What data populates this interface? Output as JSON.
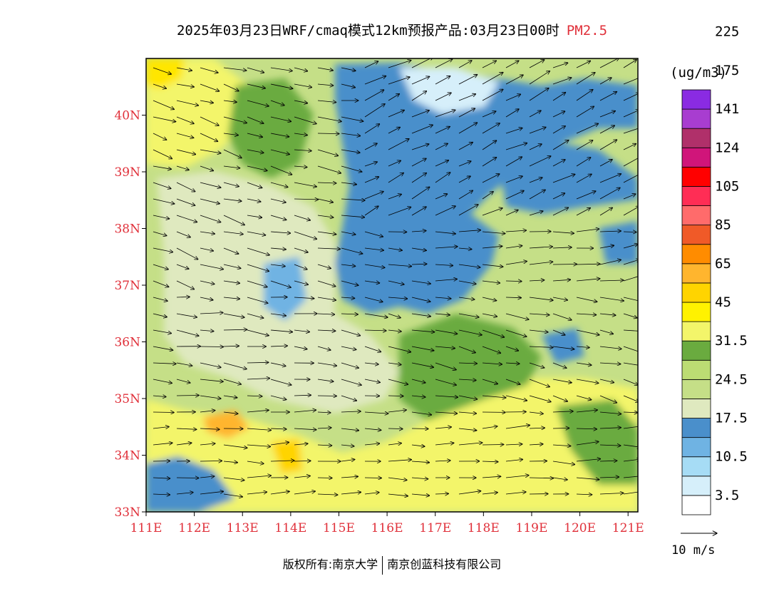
{
  "title": {
    "main": "2025年03月23日WRF/cmaq模式12km预报产品:03月23日00时",
    "species": "PM2.5"
  },
  "colorbar": {
    "unit": "(ug/m3)",
    "colors": [
      "#ffffff",
      "#d6effa",
      "#a6dcf5",
      "#6fb3e3",
      "#4a8fcb",
      "#dfe9bf",
      "#c5df87",
      "#bcdc73",
      "#6aab3f",
      "#f3f56a",
      "#fff200",
      "#ffd400",
      "#ffb52e",
      "#ff8c00",
      "#f05a28",
      "#ff6b6b",
      "#ff2d55",
      "#ff0000",
      "#d0157a",
      "#b0306a",
      "#a83dd0",
      "#8a2be2"
    ],
    "labels": [
      "3.5",
      "10.5",
      "17.5",
      "24.5",
      "31.5",
      "45",
      "65",
      "85",
      "105",
      "124",
      "141",
      "175",
      "225"
    ]
  },
  "axes": {
    "x_labels": [
      "111E",
      "112E",
      "113E",
      "114E",
      "115E",
      "116E",
      "117E",
      "118E",
      "119E",
      "120E",
      "121E"
    ],
    "y_labels": [
      "33N",
      "34N",
      "35N",
      "36N",
      "37N",
      "38N",
      "39N",
      "40N"
    ]
  },
  "wind_reference": {
    "label": "10 m/s"
  },
  "footer": {
    "left": "版权所有:南京大学",
    "right": "南京创蓝科技有限公司"
  },
  "palette": {
    "tick_red": "#e0303a",
    "map_yellow": "#f3f56a",
    "map_green": "#bcdc73",
    "map_blue": "#4a8fcb"
  }
}
